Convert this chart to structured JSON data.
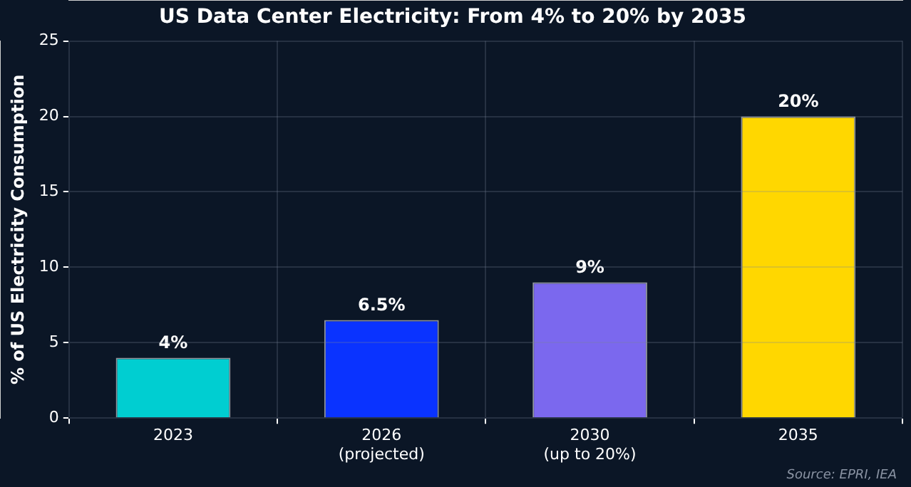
{
  "chart_data": {
    "type": "bar",
    "title": "US Data Center Electricity: From 4% to 20% by 2035",
    "ylabel": "% of US Electricity Consumption",
    "categories": [
      "2023",
      "2026\n(projected)",
      "2030\n(up to 20%)",
      "2035"
    ],
    "values": [
      4,
      6.5,
      9,
      20
    ],
    "colors": [
      "#00ced1",
      "#0a33ff",
      "#7b68ee",
      "#ffd700"
    ],
    "value_labels": [
      "4%",
      "6.5%",
      "9%",
      "20%"
    ],
    "ylim": [
      0,
      25
    ],
    "yticks": [
      0,
      5,
      10,
      15,
      20,
      25
    ],
    "grid": true,
    "legend": false,
    "annotations": [
      "Source: EPRI, IEA"
    ]
  }
}
